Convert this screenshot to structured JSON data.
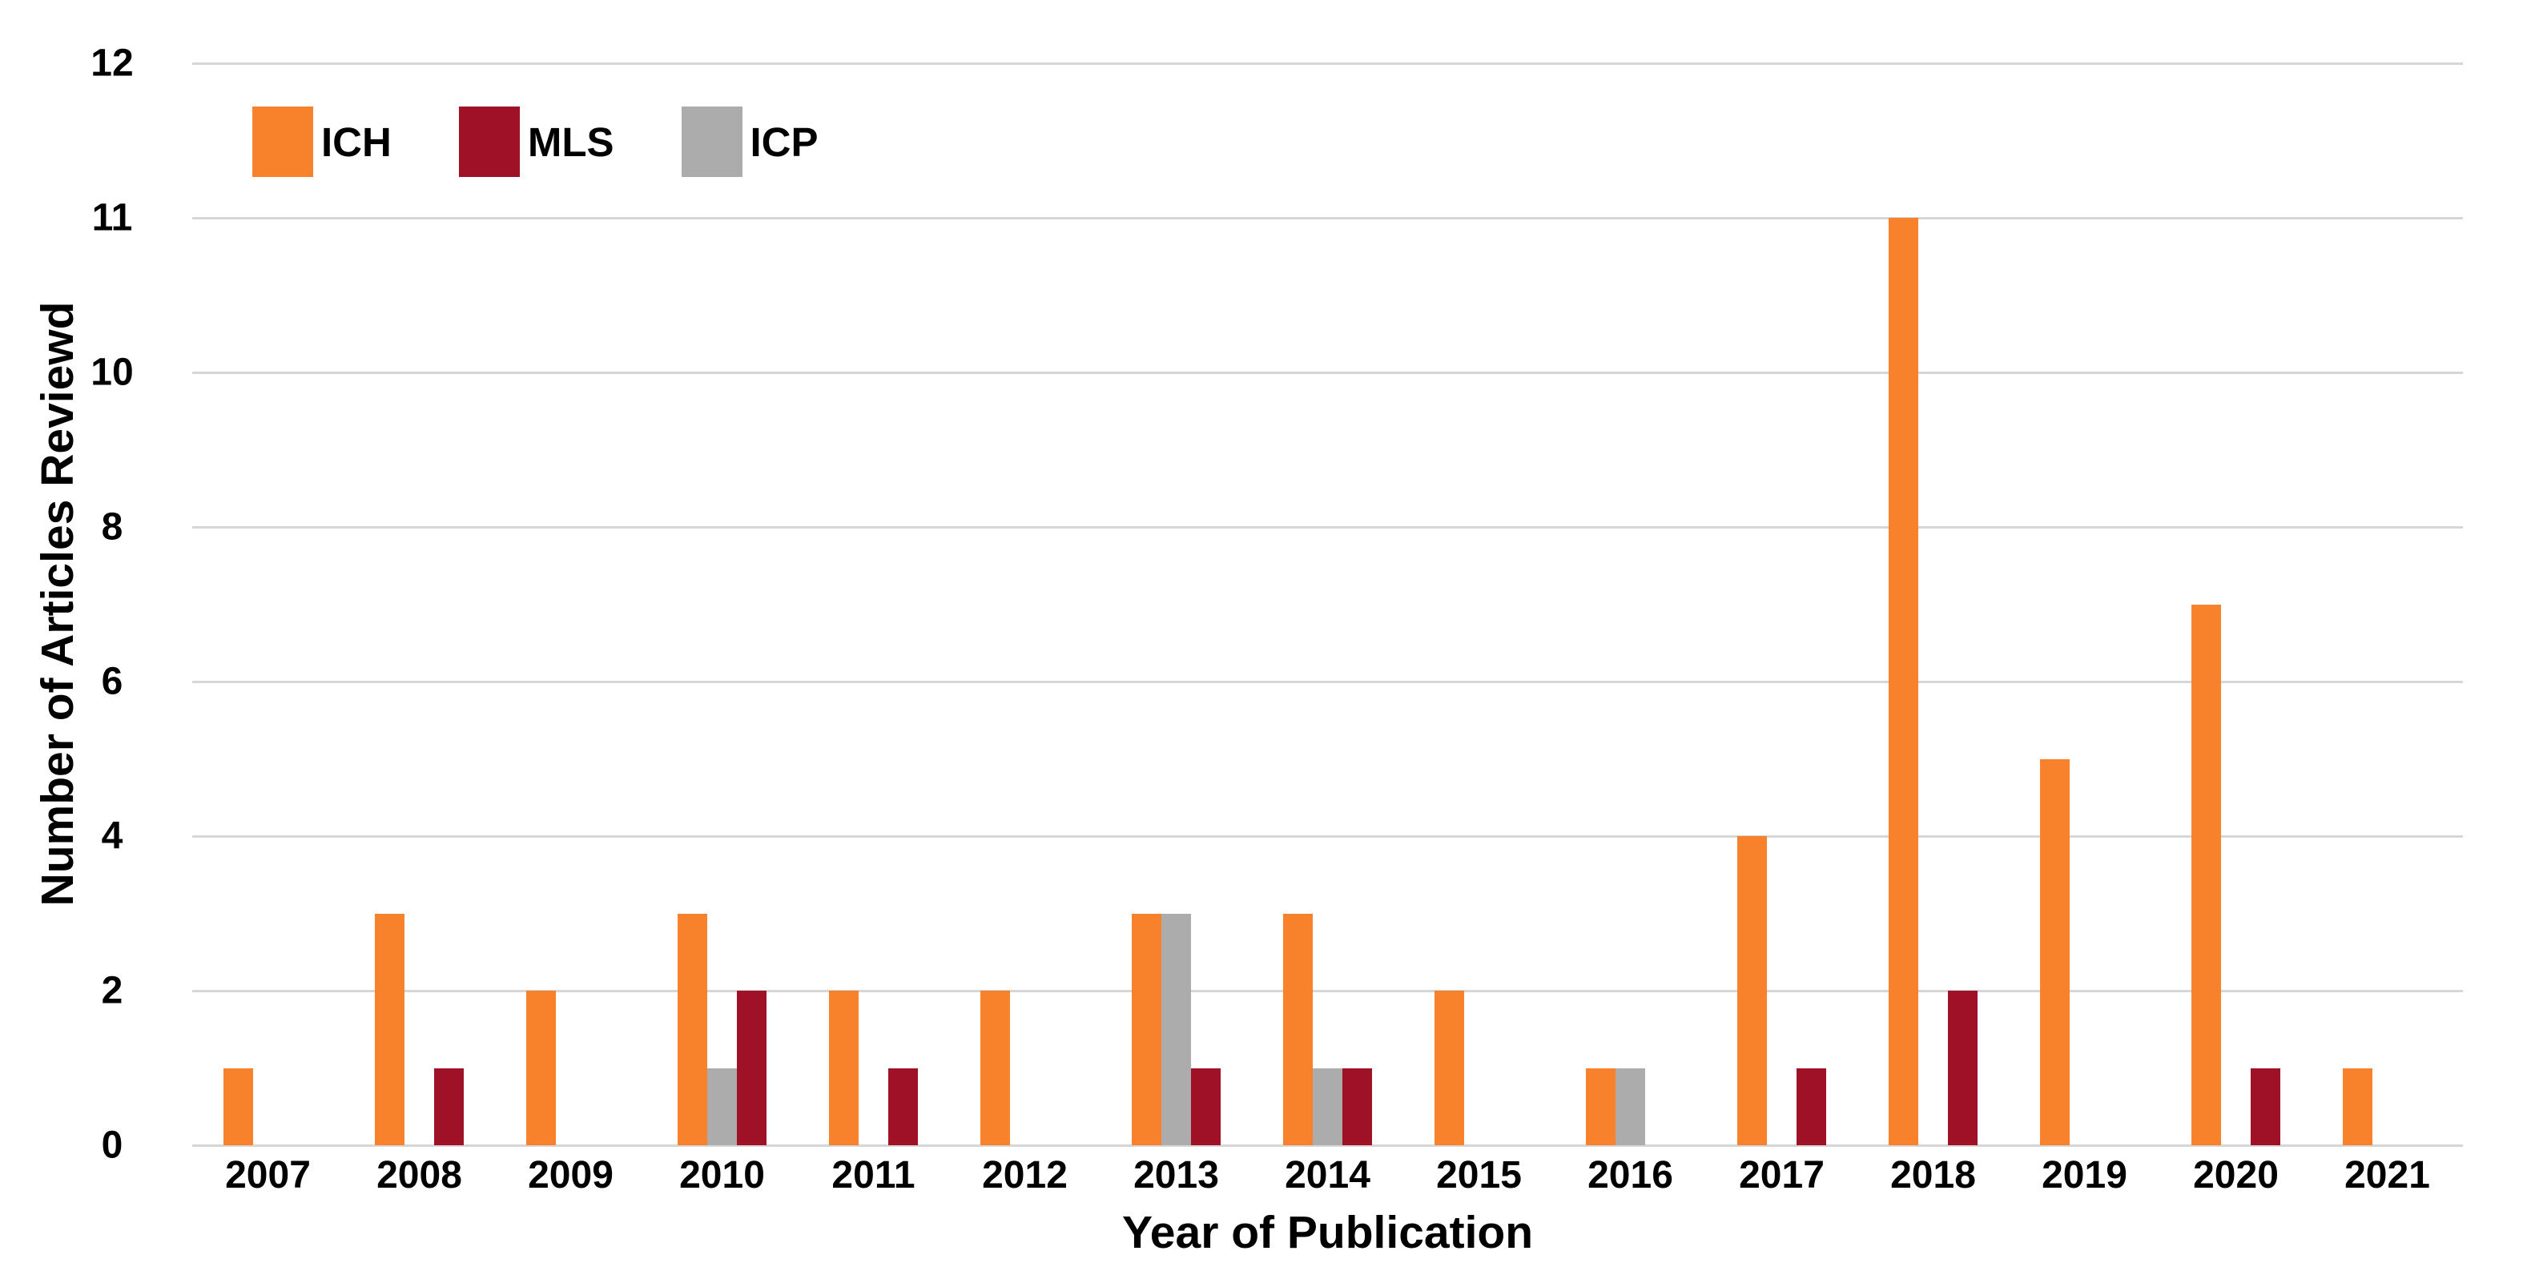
{
  "chart_data": {
    "type": "bar",
    "title": "",
    "xlabel": "Year of Publication",
    "ylabel": "Number of Articles Reviewd",
    "categories": [
      "2007",
      "2008",
      "2009",
      "2010",
      "2011",
      "2012",
      "2013",
      "2014",
      "2015",
      "2016",
      "2017",
      "2018",
      "2019",
      "2020",
      "2021"
    ],
    "series": [
      {
        "name": "ICH",
        "color": "#F8822C",
        "values": [
          1,
          3,
          2,
          3,
          2,
          2,
          3,
          3,
          2,
          1,
          4,
          11,
          5,
          7,
          1
        ]
      },
      {
        "name": "MLS",
        "color": "#9E1127",
        "values": [
          0,
          1,
          0,
          2,
          1,
          0,
          1,
          1,
          0,
          0,
          1,
          2,
          0,
          1,
          0
        ]
      },
      {
        "name": "ICP",
        "color": "#ACACAC",
        "values": [
          0,
          0,
          0,
          1,
          0,
          0,
          3,
          1,
          0,
          1,
          0,
          0,
          0,
          0,
          0
        ]
      }
    ],
    "plot_series_order": [
      "ICH",
      "ICP",
      "MLS"
    ],
    "y_axis": {
      "tick_labels": [
        "12",
        "11",
        "10",
        "8",
        "6",
        "4",
        "2",
        "0"
      ],
      "range": [
        0,
        12
      ],
      "ticks_equally_spaced": true,
      "scale_note": "ticks equally spaced: 2-unit steps from 0 to 10, 1-unit steps from 10 to 12"
    },
    "legend": {
      "position": "top-left-inside",
      "entries": [
        "ICH",
        "MLS",
        "ICP"
      ]
    },
    "grid": true,
    "colors": {
      "gridline": "#D6D6D6",
      "background": "#FFFFFF",
      "text": "#000000"
    }
  }
}
